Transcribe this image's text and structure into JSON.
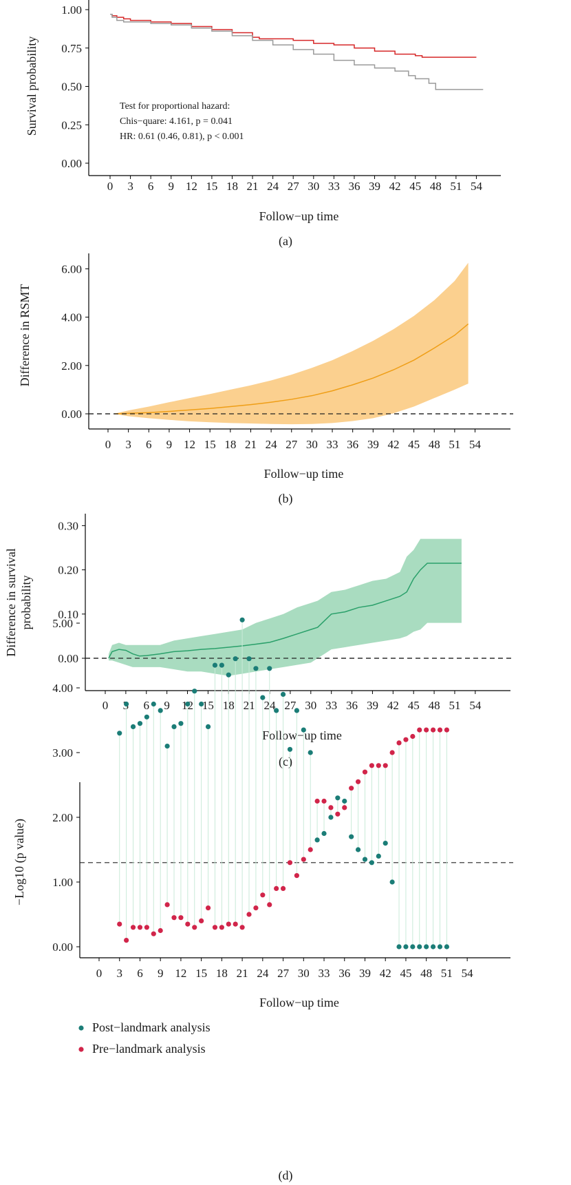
{
  "panels": [
    {
      "label": "(a)",
      "type": "line",
      "xlabel": "Follow−up time",
      "ylabel": "Survival probability",
      "ylabel2": "",
      "x_ticks": [
        "0",
        "3",
        "6",
        "9",
        "12",
        "15",
        "18",
        "21",
        "24",
        "27",
        "30",
        "33",
        "36",
        "39",
        "42",
        "45",
        "48",
        "51",
        "54"
      ],
      "y_ticks": [
        "0.00",
        "0.25",
        "0.50",
        "0.75",
        "1.00"
      ],
      "annotation": [
        "Test for proportional hazard:",
        "Chis−quare: 4.161, p = 0.041",
        "HR: 0.61 (0.46, 0.81), p < 0.001"
      ]
    },
    {
      "label": "(b)",
      "type": "area",
      "xlabel": "Follow−up time",
      "ylabel": "Difference in RSMT",
      "ylabel2": "",
      "x_ticks": [
        "0",
        "3",
        "6",
        "9",
        "12",
        "15",
        "18",
        "21",
        "24",
        "27",
        "30",
        "33",
        "36",
        "39",
        "42",
        "45",
        "48",
        "51",
        "54"
      ],
      "y_ticks": [
        "0.00",
        "2.00",
        "4.00",
        "6.00"
      ]
    },
    {
      "label": "(c)",
      "type": "area",
      "xlabel": "Follow−up time",
      "ylabel": "Difference in survival",
      "ylabel2": "probability",
      "x_ticks": [
        "0",
        "3",
        "6",
        "9",
        "12",
        "15",
        "18",
        "21",
        "24",
        "27",
        "30",
        "33",
        "36",
        "39",
        "42",
        "45",
        "48",
        "51",
        "54"
      ],
      "y_ticks": [
        "0.00",
        "0.10",
        "0.20",
        "0.30"
      ]
    },
    {
      "label": "(d)",
      "type": "scatter",
      "xlabel": "Follow−up time",
      "ylabel": "−Log10 (p value)",
      "ylabel2": "",
      "x_ticks": [
        "0",
        "3",
        "6",
        "9",
        "12",
        "15",
        "18",
        "21",
        "24",
        "27",
        "30",
        "33",
        "36",
        "39",
        "42",
        "45",
        "48",
        "51",
        "54"
      ],
      "y_ticks": [
        "0.00",
        "1.00",
        "2.00",
        "3.00",
        "4.00",
        "5.00"
      ],
      "legend": [
        "Post−landmark analysis",
        "Pre−landmark analysis"
      ]
    }
  ],
  "colors": {
    "red": "#d62728",
    "grey": "#9a9a9a",
    "orange_line": "#ef9e16",
    "orange_band": "#fbd08f",
    "green_line": "#2aa06a",
    "green_band": "#a9dcc0",
    "teal": "#1b7d77",
    "crimson": "#d1254a",
    "stem": "#c9ead8"
  },
  "chart_data": [
    {
      "type": "line",
      "xlim": [
        0,
        54
      ],
      "ylim": [
        0,
        1
      ],
      "series": [
        {
          "color": "red",
          "x": [
            0,
            0.3,
            1,
            2,
            3,
            6,
            9,
            12,
            15,
            18,
            21,
            22,
            24,
            27,
            30,
            33,
            36,
            39,
            42,
            45,
            46,
            48,
            51,
            54
          ],
          "y": [
            0.97,
            0.96,
            0.95,
            0.94,
            0.93,
            0.92,
            0.91,
            0.89,
            0.87,
            0.85,
            0.82,
            0.81,
            0.81,
            0.8,
            0.78,
            0.77,
            0.75,
            0.73,
            0.71,
            0.7,
            0.69,
            0.69,
            0.69,
            0.69
          ]
        },
        {
          "color": "grey",
          "x": [
            0,
            0.3,
            1,
            2,
            3,
            6,
            9,
            12,
            15,
            18,
            21,
            24,
            27,
            30,
            33,
            36,
            39,
            42,
            44,
            45,
            47,
            48,
            51,
            55
          ],
          "y": [
            0.97,
            0.95,
            0.93,
            0.92,
            0.92,
            0.91,
            0.9,
            0.88,
            0.86,
            0.83,
            0.8,
            0.77,
            0.74,
            0.71,
            0.67,
            0.64,
            0.62,
            0.6,
            0.57,
            0.55,
            0.52,
            0.48,
            0.48,
            0.48
          ]
        }
      ]
    },
    {
      "type": "area",
      "xlim": [
        0,
        54
      ],
      "ylim": [
        -0.6,
        6.5
      ],
      "ref_line": 0,
      "x": [
        1,
        3,
        6,
        9,
        12,
        15,
        18,
        21,
        24,
        27,
        30,
        33,
        36,
        39,
        42,
        45,
        48,
        51,
        53
      ],
      "y": [
        0.0,
        0.02,
        0.05,
        0.1,
        0.16,
        0.22,
        0.3,
        0.38,
        0.48,
        0.6,
        0.75,
        0.95,
        1.2,
        1.48,
        1.82,
        2.22,
        2.72,
        3.25,
        3.72
      ],
      "lower": [
        -0.01,
        -0.1,
        -0.18,
        -0.25,
        -0.31,
        -0.35,
        -0.38,
        -0.4,
        -0.42,
        -0.43,
        -0.42,
        -0.38,
        -0.3,
        -0.18,
        0.02,
        0.3,
        0.65,
        1.0,
        1.25
      ],
      "upper": [
        0.01,
        0.14,
        0.3,
        0.48,
        0.65,
        0.82,
        1.0,
        1.18,
        1.38,
        1.62,
        1.9,
        2.22,
        2.6,
        3.02,
        3.5,
        4.05,
        4.7,
        5.5,
        6.25
      ]
    },
    {
      "type": "area",
      "xlim": [
        0,
        54
      ],
      "ylim": [
        -0.045,
        0.33
      ],
      "ref_line": 0,
      "x": [
        0.5,
        1,
        2,
        3,
        4,
        5,
        6,
        8,
        10,
        12,
        14,
        16,
        18,
        20,
        22,
        24,
        26,
        28,
        30,
        31,
        32,
        33,
        35,
        37,
        39,
        41,
        43,
        44,
        45,
        46,
        47,
        48,
        50,
        52
      ],
      "y": [
        0.0,
        0.015,
        0.02,
        0.018,
        0.01,
        0.005,
        0.006,
        0.01,
        0.015,
        0.017,
        0.02,
        0.022,
        0.025,
        0.028,
        0.032,
        0.036,
        0.045,
        0.055,
        0.065,
        0.07,
        0.085,
        0.1,
        0.105,
        0.115,
        0.12,
        0.13,
        0.14,
        0.15,
        0.18,
        0.2,
        0.215,
        0.215,
        0.215,
        0.215
      ],
      "lower": [
        -0.005,
        -0.005,
        -0.01,
        -0.015,
        -0.02,
        -0.02,
        -0.02,
        -0.02,
        -0.025,
        -0.03,
        -0.03,
        -0.035,
        -0.04,
        -0.035,
        -0.03,
        -0.025,
        -0.02,
        -0.015,
        -0.01,
        0.0,
        0.01,
        0.02,
        0.025,
        0.03,
        0.035,
        0.04,
        0.045,
        0.05,
        0.06,
        0.065,
        0.08,
        0.08,
        0.08,
        0.08
      ],
      "upper": [
        0.01,
        0.03,
        0.035,
        0.03,
        0.03,
        0.03,
        0.03,
        0.03,
        0.04,
        0.045,
        0.05,
        0.055,
        0.06,
        0.065,
        0.08,
        0.09,
        0.1,
        0.115,
        0.125,
        0.13,
        0.14,
        0.15,
        0.155,
        0.165,
        0.175,
        0.18,
        0.195,
        0.23,
        0.245,
        0.27,
        0.27,
        0.27,
        0.27,
        0.27
      ]
    },
    {
      "type": "scatter",
      "xlim": [
        0,
        54
      ],
      "ylim": [
        0,
        5.3
      ],
      "ref_line": 1.3,
      "x": [
        3,
        4,
        5,
        6,
        7,
        8,
        9,
        10,
        11,
        12,
        13,
        14,
        15,
        16,
        17,
        18,
        19,
        20,
        21,
        22,
        23,
        24,
        25,
        26,
        27,
        28,
        29,
        30,
        31,
        32,
        33,
        34,
        35,
        36,
        37,
        38,
        39,
        40,
        41,
        42,
        43,
        44,
        45,
        46,
        47,
        48,
        49,
        50,
        51
      ],
      "series": [
        {
          "name": "Post−landmark analysis",
          "color": "teal",
          "values": [
            3.3,
            3.75,
            3.4,
            3.45,
            3.55,
            3.75,
            3.65,
            3.1,
            3.4,
            3.45,
            3.75,
            3.95,
            3.75,
            3.4,
            4.35,
            4.35,
            4.2,
            4.45,
            5.05,
            4.45,
            4.3,
            3.85,
            4.3,
            3.65,
            3.9,
            3.05,
            3.65,
            3.35,
            3.0,
            1.65,
            1.75,
            2.0,
            2.3,
            2.25,
            1.7,
            1.5,
            1.35,
            1.3,
            1.4,
            1.6,
            1.0,
            0.0,
            0.0,
            0.0,
            0.0,
            0.0,
            0.0,
            0.0,
            0.0
          ]
        },
        {
          "name": "Pre−landmark analysis",
          "color": "crimson",
          "values": [
            0.35,
            0.1,
            0.3,
            0.3,
            0.3,
            0.2,
            0.25,
            0.65,
            0.45,
            0.45,
            0.35,
            0.3,
            0.4,
            0.6,
            0.3,
            0.3,
            0.35,
            0.35,
            0.3,
            0.5,
            0.6,
            0.8,
            0.65,
            0.9,
            0.9,
            1.3,
            1.1,
            1.35,
            1.5,
            2.25,
            2.25,
            2.15,
            2.05,
            2.15,
            2.45,
            2.55,
            2.7,
            2.8,
            2.8,
            2.8,
            3.0,
            3.15,
            3.2,
            3.25,
            3.35,
            3.35,
            3.35,
            3.35,
            3.35
          ]
        }
      ]
    }
  ]
}
